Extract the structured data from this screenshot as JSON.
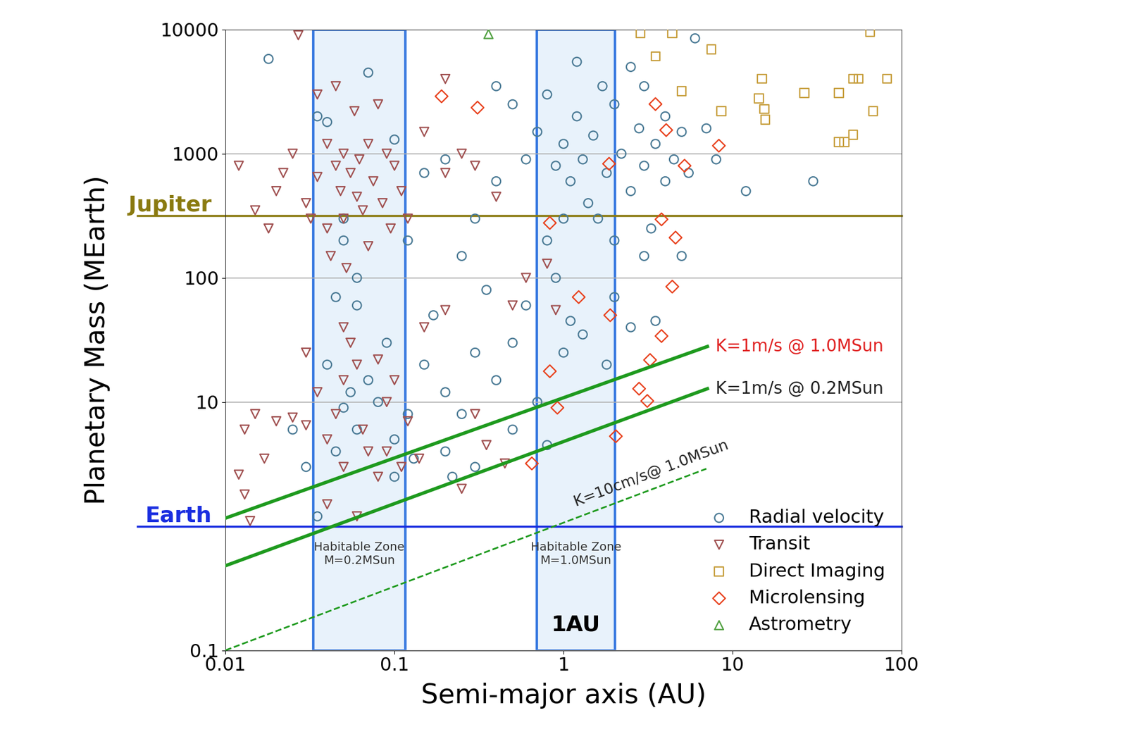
{
  "chart_data": {
    "type": "scatter",
    "x_label": "Semi-major axis (AU)",
    "y_label": "Planetary Mass (MEarth)",
    "log": true,
    "grid": true,
    "legend": "lower right",
    "xlim": [
      0.01,
      100
    ],
    "xticks": [
      0.01,
      0.1,
      1,
      10,
      100
    ],
    "ylim": [
      0.1,
      10000
    ],
    "yticks": [
      0.1,
      10,
      100,
      1000,
      10000
    ],
    "series": [
      {
        "name": "Radial velocity",
        "color": "#4a7a95",
        "marker": "circle",
        "x": [
          0.018,
          0.04,
          0.05,
          0.05,
          0.06,
          0.07,
          0.1,
          0.12,
          0.15,
          0.2,
          0.25,
          0.3,
          0.4,
          0.5,
          0.6,
          0.7,
          0.8,
          0.9,
          1.0,
          1.1,
          1.2,
          1.2,
          1.3,
          1.4,
          1.5,
          1.6,
          1.7,
          1.8,
          2.0,
          2.0,
          2.2,
          2.5,
          2.5,
          2.8,
          3.0,
          3.0,
          3.3,
          3.5,
          4.0,
          4.0,
          4.5,
          5.0,
          5.0,
          5.5,
          6.0,
          7.0,
          8.0,
          12,
          30,
          1.0,
          0.8,
          0.6,
          0.5,
          0.4,
          0.3,
          0.25,
          0.2,
          0.15,
          0.12,
          0.1,
          0.09,
          0.08,
          0.07,
          0.06,
          0.055,
          0.05,
          0.045,
          0.04,
          0.035,
          0.1,
          0.2,
          0.3,
          0.5,
          0.7,
          1.0,
          1.3,
          1.8,
          2.0,
          2.5,
          3.0,
          3.5,
          0.9,
          0.35,
          0.4,
          0.17,
          0.13,
          0.06,
          0.045,
          0.035,
          1.1,
          0.8,
          0.22,
          0.03,
          0.025
        ],
        "y": [
          5800,
          1800,
          300,
          200,
          100,
          4500,
          1300,
          200,
          700,
          900,
          150,
          300,
          3500,
          2500,
          900,
          1500,
          3000,
          800,
          1200,
          600,
          5500,
          2000,
          900,
          400,
          1400,
          300,
          3500,
          700,
          2500,
          200,
          1000,
          5000,
          500,
          1600,
          3500,
          800,
          250,
          1200,
          2000,
          600,
          900,
          1500,
          150,
          700,
          8500,
          1600,
          900,
          500,
          600,
          300,
          200,
          60,
          30,
          15,
          25,
          8,
          12,
          20,
          8,
          5,
          30,
          10,
          15,
          6,
          12,
          9,
          4,
          20,
          1.2,
          2.5,
          4,
          3,
          6,
          10,
          25,
          35,
          20,
          70,
          40,
          150,
          45,
          100,
          80,
          600,
          50,
          3.5,
          60,
          70,
          2000,
          45,
          4.5,
          2.5,
          3,
          6
        ]
      },
      {
        "name": "Transit",
        "color": "#a05050",
        "marker": "triangle_down",
        "x": [
          0.012,
          0.015,
          0.018,
          0.02,
          0.022,
          0.025,
          0.027,
          0.03,
          0.032,
          0.035,
          0.035,
          0.04,
          0.04,
          0.042,
          0.045,
          0.045,
          0.048,
          0.05,
          0.05,
          0.052,
          0.055,
          0.058,
          0.06,
          0.062,
          0.065,
          0.07,
          0.07,
          0.075,
          0.08,
          0.085,
          0.09,
          0.095,
          0.1,
          0.11,
          0.12,
          0.15,
          0.2,
          0.2,
          0.25,
          0.3,
          0.4,
          0.5,
          0.6,
          0.8,
          0.9,
          0.013,
          0.015,
          0.02,
          0.025,
          0.03,
          0.035,
          0.04,
          0.045,
          0.05,
          0.05,
          0.06,
          0.065,
          0.07,
          0.08,
          0.09,
          0.1,
          0.11,
          0.12,
          0.15,
          0.2,
          0.25,
          0.3,
          0.35,
          0.013,
          0.014,
          0.012,
          0.04,
          0.06,
          0.03,
          0.05,
          0.055,
          0.08,
          0.09,
          0.017,
          0.45,
          0.14
        ],
        "y": [
          800,
          350,
          250,
          500,
          700,
          1000,
          9000,
          400,
          300,
          650,
          3000,
          1200,
          250,
          150,
          3500,
          800,
          500,
          1000,
          300,
          120,
          700,
          2200,
          450,
          900,
          350,
          1200,
          180,
          600,
          2500,
          400,
          1000,
          250,
          800,
          500,
          300,
          1500,
          4000,
          700,
          1000,
          800,
          450,
          60,
          100,
          130,
          55,
          6,
          8,
          7,
          7.5,
          25,
          12,
          5,
          8,
          3,
          15,
          20,
          6,
          4,
          2.5,
          10,
          15,
          3,
          7,
          40,
          55,
          2,
          8,
          4.5,
          1.8,
          1.1,
          2.6,
          1.5,
          1.2,
          6.5,
          40,
          30,
          22,
          4,
          3.5,
          3.2,
          3.5
        ]
      },
      {
        "name": "Direct Imaging",
        "color": "#c8a040",
        "marker": "square",
        "x": [
          2.85,
          4.4,
          7.5,
          3.5,
          5.0,
          8.6,
          14.9,
          14.3,
          15.4,
          15.6,
          26.6,
          42.5,
          51.6,
          55.7,
          82,
          67.8,
          42.5,
          45.9,
          51.6,
          65
        ],
        "y": [
          9370,
          9370,
          6940,
          6090,
          3180,
          2200,
          4010,
          2790,
          2290,
          1880,
          3090,
          3090,
          4010,
          4010,
          4010,
          2200,
          1240,
          1240,
          1420,
          9610
        ]
      },
      {
        "name": "Microlensing",
        "color": "#e8401c",
        "marker": "diamond",
        "x": [
          0.19,
          0.31,
          3.5,
          4.05,
          5.2,
          8.3,
          3.8,
          4.6,
          4.4,
          3.8,
          1.23,
          0.83,
          0.83,
          1.89,
          3.25,
          2.8,
          3.13,
          2.04,
          0.92,
          0.65,
          1.86
        ],
        "y": [
          2900,
          2350,
          2510,
          1550,
          800,
          1160,
          296,
          211,
          85,
          34,
          70,
          277,
          17.7,
          50,
          21.8,
          12.8,
          10.2,
          5.3,
          9.0,
          3.2,
          830
        ]
      },
      {
        "name": "Astrometry",
        "color": "#50a040",
        "marker": "triangle_up",
        "x": [
          0.36
        ],
        "y": [
          9200
        ]
      }
    ],
    "reference_lines": [
      {
        "label": "Jupiter",
        "value": 318,
        "color": "#8a7a10"
      },
      {
        "label": "Earth",
        "value": 1,
        "color": "#1a2ee0"
      }
    ],
    "sensitivity_lines": [
      {
        "label": "K=1m/s @ 1.0MSun",
        "x": [
          0.01,
          7.1
        ],
        "y": [
          1.16,
          28
        ],
        "color": "#1e9a1e",
        "line_style": "solid"
      },
      {
        "label": "K=1m/s @ 0.2MSun",
        "x": [
          0.01,
          7.1
        ],
        "y": [
          0.48,
          12.8
        ],
        "color": "#1e9a1e",
        "line_style": "solid"
      },
      {
        "label": "K=10cm/s@ 1.0MSun",
        "x": [
          0.01,
          7.0
        ],
        "y": [
          0.1,
          2.9
        ],
        "color": "#1e9a1e",
        "line_style": "dashed"
      }
    ],
    "habitable_zones": [
      {
        "label": "Habitable Zone\nM=0.2MSun",
        "xmin": 0.033,
        "xmax": 0.116
      },
      {
        "label": "Habitable Zone\nM=1.0MSun",
        "xmin": 0.697,
        "xmax": 2.01
      }
    ],
    "annotation": "1AU"
  }
}
